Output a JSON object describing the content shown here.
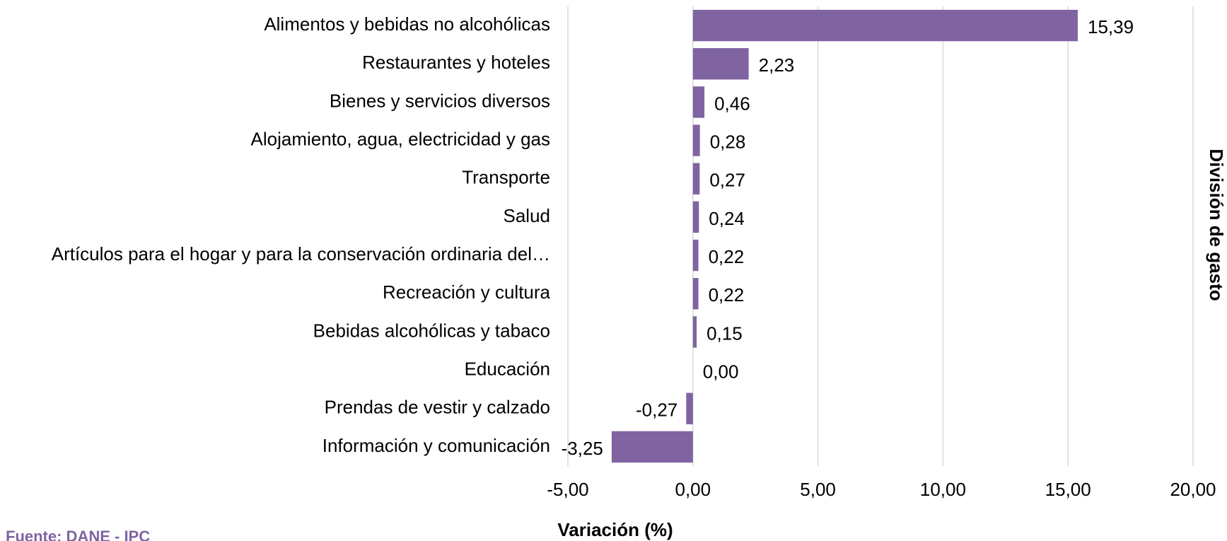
{
  "chart_data": {
    "type": "barh",
    "xlabel": "Variación (%)",
    "ylabel": "División de gasto",
    "source": "Fuente: DANE - IPC",
    "categories": [
      "Alimentos y bebidas no alcohólicas",
      "Restaurantes y hoteles",
      "Bienes y servicios diversos",
      "Alojamiento, agua, electricidad y gas",
      "Transporte",
      "Salud",
      "Artículos para el hogar y para la conservación ordinaria del…",
      "Recreación y cultura",
      "Bebidas alcohólicas y tabaco",
      "Educación",
      "Prendas de vestir y calzado",
      "Información y comunicación"
    ],
    "values": [
      15.39,
      2.23,
      0.46,
      0.28,
      0.27,
      0.24,
      0.22,
      0.22,
      0.15,
      0.0,
      -0.27,
      -3.25
    ],
    "value_labels": [
      "15,39",
      "2,23",
      "0,46",
      "0,28",
      "0,27",
      "0,24",
      "0,22",
      "0,22",
      "0,15",
      "0,00",
      "-0,27",
      "-3,25"
    ],
    "color": "#8064a2",
    "xlim": [
      -5,
      20
    ],
    "xticks": [
      {
        "value": -5,
        "label": "-5,00"
      },
      {
        "value": 0,
        "label": "0,00"
      },
      {
        "value": 5,
        "label": "5,00"
      },
      {
        "value": 10,
        "label": "10,00"
      },
      {
        "value": 15,
        "label": "15,00"
      },
      {
        "value": 20,
        "label": "20,00"
      }
    ],
    "grid": true
  }
}
